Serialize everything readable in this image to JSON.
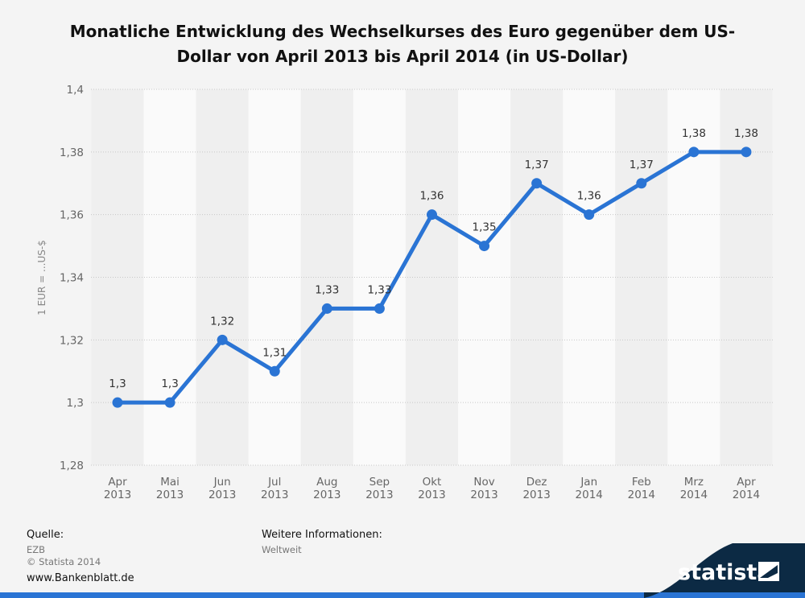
{
  "chart_data": {
    "type": "line",
    "title_lines": [
      "Monatliche Entwicklung des Wechselkurses des Euro gegenüber dem US-",
      "Dollar von April 2013 bis April 2014 (in US-Dollar)"
    ],
    "ylabel": "1 EUR = ...US-$",
    "xlabel": "",
    "categories": [
      [
        "Apr",
        "2013"
      ],
      [
        "Mai",
        "2013"
      ],
      [
        "Jun",
        "2013"
      ],
      [
        "Jul",
        "2013"
      ],
      [
        "Aug",
        "2013"
      ],
      [
        "Sep",
        "2013"
      ],
      [
        "Okt",
        "2013"
      ],
      [
        "Nov",
        "2013"
      ],
      [
        "Dez",
        "2013"
      ],
      [
        "Jan",
        "2014"
      ],
      [
        "Feb",
        "2014"
      ],
      [
        "Mrz",
        "2014"
      ],
      [
        "Apr",
        "2014"
      ]
    ],
    "values": [
      1.3,
      1.3,
      1.32,
      1.31,
      1.33,
      1.33,
      1.36,
      1.35,
      1.37,
      1.36,
      1.37,
      1.38,
      1.38
    ],
    "value_labels": [
      "1,3",
      "1,3",
      "1,32",
      "1,31",
      "1,33",
      "1,33",
      "1,36",
      "1,35",
      "1,37",
      "1,36",
      "1,37",
      "1,38",
      "1,38"
    ],
    "yticks": [
      1.28,
      1.3,
      1.32,
      1.34,
      1.36,
      1.38,
      1.4
    ],
    "ytick_labels": [
      "1,28",
      "1,3",
      "1,32",
      "1,34",
      "1,36",
      "1,38",
      "1,4"
    ],
    "ylim": [
      1.28,
      1.4
    ],
    "grid": true,
    "line_color": "#2a74d4"
  },
  "footer": {
    "source_label": "Quelle:",
    "source_lines": [
      "EZB",
      "© Statista 2014"
    ],
    "info_label": "Weitere Informationen:",
    "info_value": "Weltweit",
    "site": "www.Bankenblatt.de",
    "logo_text": "statista"
  },
  "colors": {
    "background": "#f4f4f4",
    "band_light": "#fafafa",
    "band_dark": "#efefef",
    "accent": "#2a74d4",
    "logo_bg": "#0c2a44"
  }
}
